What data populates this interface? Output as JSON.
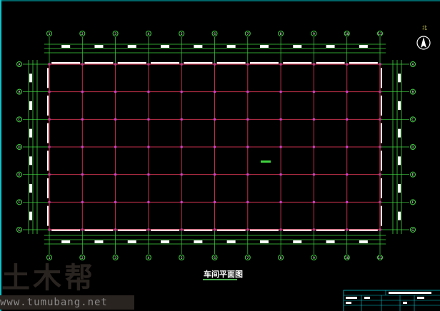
{
  "drawing": {
    "title": "车间平面图",
    "north_label": "北",
    "axes_columns": [
      "1",
      "2",
      "3",
      "4",
      "5",
      "6",
      "7",
      "8",
      "9",
      "10",
      "11"
    ],
    "axes_rows": [
      "A",
      "B",
      "C",
      "D",
      "E",
      "F",
      "G"
    ],
    "colors": {
      "background": "#000000",
      "grid": "#c0304a",
      "dimension": "#3fd43f",
      "border": "#00c8d0",
      "text": "#ffffff"
    }
  },
  "watermark": {
    "logo": "土木帮",
    "url": "www.tumubang.net"
  }
}
